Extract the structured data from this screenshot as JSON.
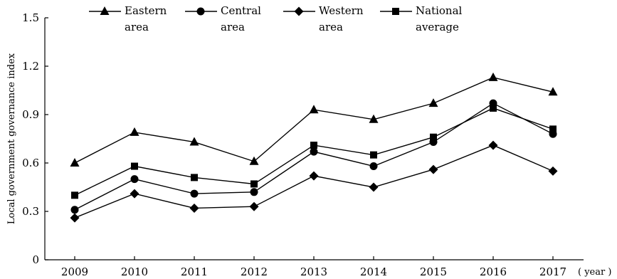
{
  "chart_data": {
    "type": "line",
    "xlabel": "( year )",
    "ylabel": "Local government governance index",
    "ylim": [
      0,
      1.5
    ],
    "yticks": [
      "0",
      "0.3",
      "0.6",
      "0.9",
      "1.2",
      "1.5"
    ],
    "categories": [
      "2009",
      "2010",
      "2011",
      "2012",
      "2013",
      "2014",
      "2015",
      "2016",
      "2017"
    ],
    "legend_position": "top",
    "series": [
      {
        "name": "Eastern area",
        "legend_lines": [
          "Eastern",
          "area"
        ],
        "marker": "triangle",
        "values": [
          0.6,
          0.79,
          0.73,
          0.61,
          0.93,
          0.87,
          0.97,
          1.13,
          1.04
        ]
      },
      {
        "name": "Central area",
        "legend_lines": [
          "Central",
          "area"
        ],
        "marker": "circle",
        "values": [
          0.31,
          0.5,
          0.41,
          0.42,
          0.67,
          0.58,
          0.73,
          0.97,
          0.78
        ]
      },
      {
        "name": "Western area",
        "legend_lines": [
          "Western",
          "area"
        ],
        "marker": "diamond",
        "values": [
          0.26,
          0.41,
          0.32,
          0.33,
          0.52,
          0.45,
          0.56,
          0.71,
          0.55
        ]
      },
      {
        "name": "National average",
        "legend_lines": [
          "National",
          "average"
        ],
        "marker": "square",
        "values": [
          0.4,
          0.58,
          0.51,
          0.47,
          0.71,
          0.65,
          0.76,
          0.94,
          0.81
        ]
      }
    ]
  }
}
